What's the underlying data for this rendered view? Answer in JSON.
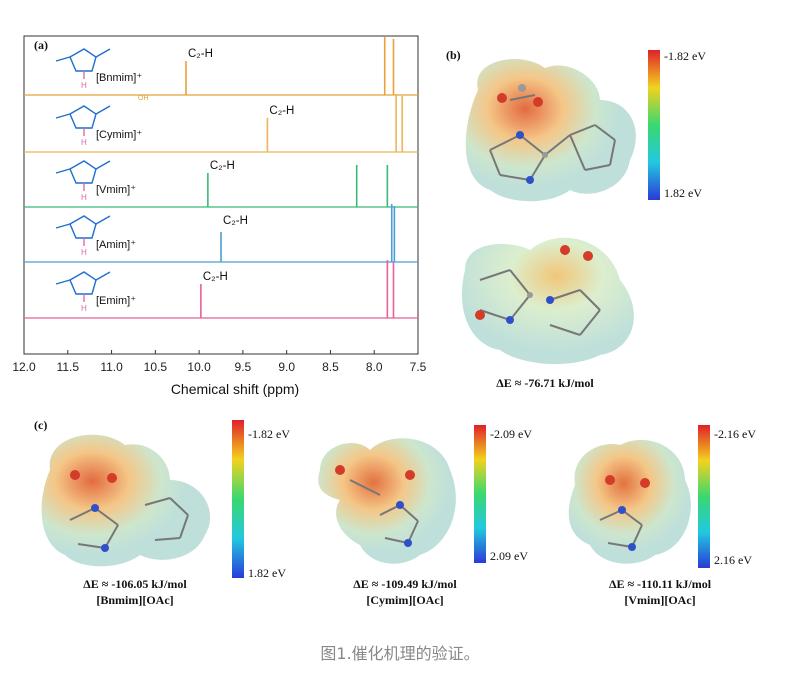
{
  "panel_a": {
    "label": "(a)",
    "peak_label": "C₂-H",
    "traces": [
      {
        "cation": "[Bnmim]⁺",
        "color": "#e8a23a",
        "c2h_ppm": 10.15,
        "peaks": [
          7.88,
          7.78
        ]
      },
      {
        "cation": "[Cymim]⁺",
        "color": "#f0b25a",
        "c2h_ppm": 9.22,
        "peaks": [
          7.75,
          7.68
        ]
      },
      {
        "cation": "[Vmim]⁺",
        "color": "#3cb878",
        "c2h_ppm": 9.9,
        "peaks": [
          8.2,
          7.85
        ]
      },
      {
        "cation": "[Amim]⁺",
        "color": "#4a9fd8",
        "c2h_ppm": 9.75,
        "peaks": [
          7.8,
          7.77
        ]
      },
      {
        "cation": "[Emim]⁺",
        "color": "#e8609a",
        "c2h_ppm": 9.98,
        "peaks": [
          7.85,
          7.78
        ]
      }
    ],
    "cooh_label": "OH",
    "hydrogen_label": "H"
  },
  "chart_data": {
    "type": "line",
    "xlabel": "Chemical shift (ppm)",
    "xlim": [
      12.0,
      7.5
    ],
    "xticks": [
      "12.0",
      "11.5",
      "11.0",
      "10.5",
      "10.0",
      "9.5",
      "9.0",
      "8.5",
      "8.0",
      "7.5"
    ],
    "series": [
      {
        "name": "[Bnmim]⁺",
        "c2h_ppm": 10.15
      },
      {
        "name": "[Cymim]⁺",
        "c2h_ppm": 9.22
      },
      {
        "name": "[Vmim]⁺",
        "c2h_ppm": 9.9
      },
      {
        "name": "[Amim]⁺",
        "c2h_ppm": 9.75
      },
      {
        "name": "[Emim]⁺",
        "c2h_ppm": 9.98
      }
    ]
  },
  "panel_b": {
    "label": "(b)",
    "cbar_top": "-1.82 eV",
    "cbar_bottom": "1.82 eV",
    "energy": "ΔE ≈ -76.71 kJ/mol"
  },
  "panel_c": {
    "label": "(c)",
    "items": [
      {
        "energy": "ΔE ≈ -106.05 kJ/mol",
        "name": "[Bnmim][OAc]",
        "cbar_top": "-1.82 eV",
        "cbar_bottom": "1.82 eV"
      },
      {
        "energy": "ΔE ≈ -109.49 kJ/mol",
        "name": "[Cymim][OAc]",
        "cbar_top": "-2.09 eV",
        "cbar_bottom": "2.09 eV"
      },
      {
        "energy": "ΔE ≈ -110.11 kJ/mol",
        "name": "[Vmim][OAc]",
        "cbar_top": "-2.16 eV",
        "cbar_bottom": "2.16 eV"
      }
    ]
  },
  "caption": "图1.催化机理的验证。"
}
